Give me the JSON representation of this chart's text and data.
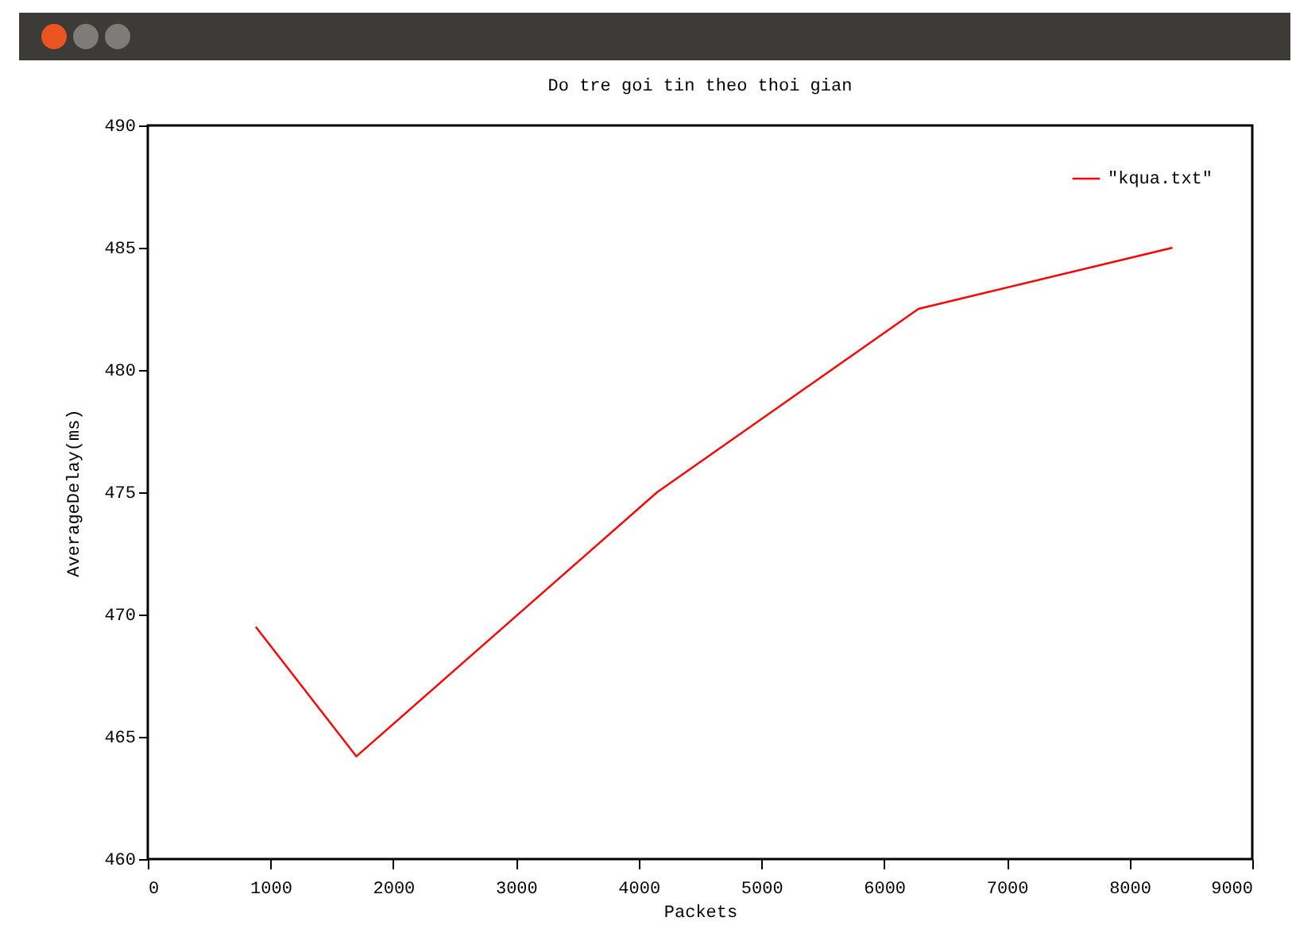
{
  "chart_data": {
    "type": "line",
    "title": "Do tre goi tin theo thoi gian",
    "xlabel": "Packets",
    "ylabel": "AverageDelay(ms)",
    "x": [
      880,
      1700,
      4150,
      6280,
      8350
    ],
    "series": [
      {
        "name": "\"kqua.txt\"",
        "color": "#ff0000",
        "values": [
          469.5,
          464.2,
          475,
          482.5,
          485
        ]
      }
    ],
    "xlim": [
      0,
      9000
    ],
    "xticks": [
      0,
      1000,
      2000,
      3000,
      4000,
      5000,
      6000,
      7000,
      8000,
      9000
    ],
    "ylim": [
      460,
      490
    ],
    "yticks": [
      460,
      465,
      470,
      475,
      480,
      485,
      490
    ],
    "legend": "top right",
    "grid": false,
    "marker": "none",
    "line_style": "solid"
  }
}
